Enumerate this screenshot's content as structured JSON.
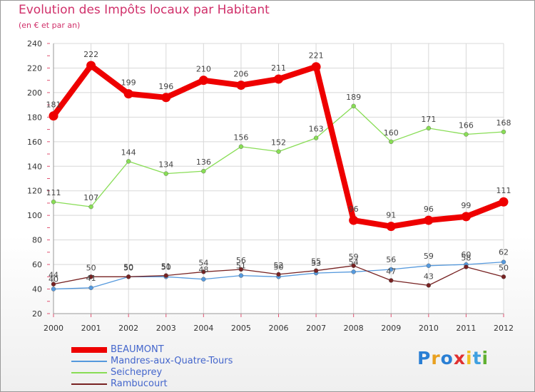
{
  "title": "Evolution des Impôts locaux par Habitant",
  "subtitle": "(en € et par an)",
  "logo": "Proxiti",
  "chart_data": {
    "type": "line",
    "title": "Evolution des Impôts locaux par Habitant",
    "ylabel": "(en € et par an)",
    "xlabel": "",
    "ylim": [
      20,
      240
    ],
    "yticks": [
      20,
      40,
      60,
      80,
      100,
      120,
      140,
      160,
      180,
      200,
      220,
      240
    ],
    "categories": [
      "2000",
      "2001",
      "2002",
      "2003",
      "2004",
      "2005",
      "2006",
      "2007",
      "2008",
      "2009",
      "2010",
      "2011",
      "2012"
    ],
    "series": [
      {
        "name": "BEAUMONT",
        "color": "#ee0000",
        "values": [
          181,
          222,
          199,
          196,
          210,
          206,
          211,
          221,
          96,
          91,
          96,
          99,
          111
        ]
      },
      {
        "name": "Mandres-aux-Quatre-Tours",
        "color": "#5599dd",
        "values": [
          40,
          41,
          50,
          50,
          48,
          51,
          50,
          53,
          54,
          56,
          59,
          60,
          62
        ]
      },
      {
        "name": "Seicheprey",
        "color": "#88dd55",
        "values": [
          111,
          107,
          144,
          134,
          136,
          156,
          152,
          163,
          189,
          160,
          171,
          166,
          168
        ]
      },
      {
        "name": "Rambucourt",
        "color": "#772222",
        "values": [
          44,
          50,
          50,
          51,
          54,
          56,
          52,
          55,
          59,
          47,
          43,
          58,
          50
        ]
      }
    ]
  }
}
